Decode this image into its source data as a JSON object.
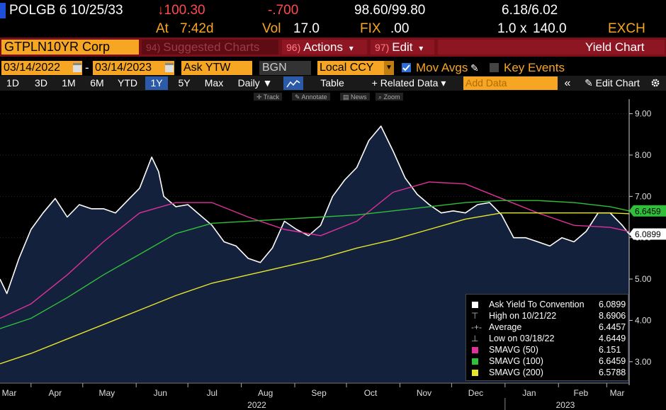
{
  "quote": {
    "security": "POLGB 6 10/25/33",
    "price": "↓100.30",
    "change": "-.700",
    "bid_ask": "98.60/99.80",
    "yield_pair": "6.18/6.02",
    "time_prefix": "At",
    "time": "7:42d",
    "vol_label": "Vol",
    "vol": "17.0",
    "fix_label": "FIX",
    "fix": ".00",
    "size": "1.0",
    "size_x": "x",
    "size2": "140.0",
    "exch": "EXCH"
  },
  "header": {
    "ticker": "GTPLN10YR Corp",
    "suggested": {
      "num": "94)",
      "label": "Suggested Charts"
    },
    "actions": {
      "num": "96)",
      "label": "Actions",
      "caret": "▾"
    },
    "edit": {
      "num": "97)",
      "label": "Edit",
      "caret": "▾"
    },
    "title": "Yield Chart"
  },
  "controls": {
    "start_date": "03/14/2022",
    "dash": "-",
    "end_date": "03/14/2023",
    "field": "Ask YTW",
    "source": "BGN",
    "currency": "Local CCY",
    "mov_avgs": "Mov Avgs",
    "key_events": "Key Events"
  },
  "periods": [
    "1D",
    "3D",
    "1M",
    "6M",
    "YTD",
    "1Y",
    "5Y",
    "Max"
  ],
  "selected_period": "1Y",
  "frequency": "Daily ▼",
  "table_btn": "Table",
  "related": "+ Related Data ▾",
  "add_data_placeholder": "Add Data",
  "collapse": "«",
  "edit_chart": "✎ Edit Chart",
  "settings_icon": "gear-icon",
  "tools": [
    "✛ Track",
    "✎ Annotate",
    "▤ News",
    "⌕ Zoom"
  ],
  "colors": {
    "price": "#ffffff",
    "fill": "#14213d",
    "sma50": "#e0309a",
    "sma100": "#2fbf3a",
    "sma200": "#e6e62a",
    "amber": "#f6a623",
    "header": "#7a0f1a"
  },
  "legend": [
    {
      "icon": "white-square",
      "label": "Ask Yield To Convention",
      "value": "6.0899"
    },
    {
      "icon": "high-marker",
      "label": "High on 10/21/22",
      "value": "8.6906"
    },
    {
      "icon": "average-marker",
      "label": "Average",
      "value": "6.4457"
    },
    {
      "icon": "low-marker",
      "label": "Low on 03/18/22",
      "value": "4.6449"
    },
    {
      "icon": "magenta-square",
      "label": "SMAVG (50)",
      "value": "6.151"
    },
    {
      "icon": "green-square",
      "label": "SMAVG (100)",
      "value": "6.6459"
    },
    {
      "icon": "yellow-square",
      "label": "SMAVG (200)",
      "value": "6.5788"
    }
  ],
  "chart_data": {
    "type": "area",
    "ylim": [
      2.5,
      9.25
    ],
    "yticks": [
      "9.00",
      "8.00",
      "7.00",
      "6.00",
      "5.00",
      "4.00",
      "3.00"
    ],
    "ytick_values": [
      9,
      8,
      7,
      6,
      5,
      4,
      3
    ],
    "x_months": [
      "Mar",
      "Apr",
      "May",
      "Jun",
      "Jul",
      "Aug",
      "Sep",
      "Oct",
      "Nov",
      "Dec",
      "Jan",
      "Feb",
      "Mar"
    ],
    "x_years": [
      "2022",
      "2023"
    ],
    "x_range": [
      "2022-03-14",
      "2023-03-14"
    ],
    "last_labels": [
      {
        "name": "SMAVG (100)",
        "value": "6.6459"
      },
      {
        "name": "Ask Yield To Convention",
        "value": "6.0899"
      }
    ],
    "series": [
      {
        "name": "Ask Yield To Convention",
        "x": [
          "2022-03-14",
          "2022-03-18",
          "2022-03-25",
          "2022-04-01",
          "2022-04-08",
          "2022-04-15",
          "2022-04-22",
          "2022-04-29",
          "2022-05-06",
          "2022-05-13",
          "2022-05-20",
          "2022-05-27",
          "2022-06-03",
          "2022-06-10",
          "2022-06-14",
          "2022-06-17",
          "2022-06-24",
          "2022-07-01",
          "2022-07-08",
          "2022-07-15",
          "2022-07-22",
          "2022-07-29",
          "2022-08-05",
          "2022-08-12",
          "2022-08-19",
          "2022-08-26",
          "2022-09-02",
          "2022-09-09",
          "2022-09-16",
          "2022-09-23",
          "2022-09-30",
          "2022-10-07",
          "2022-10-14",
          "2022-10-21",
          "2022-10-28",
          "2022-11-04",
          "2022-11-11",
          "2022-11-18",
          "2022-11-25",
          "2022-12-02",
          "2022-12-09",
          "2022-12-16",
          "2022-12-23",
          "2022-12-30",
          "2023-01-06",
          "2023-01-13",
          "2023-01-20",
          "2023-01-27",
          "2023-02-03",
          "2023-02-10",
          "2023-02-17",
          "2023-02-24",
          "2023-03-03",
          "2023-03-10",
          "2023-03-14"
        ],
        "values": [
          5.0,
          4.65,
          5.5,
          6.2,
          6.6,
          6.95,
          6.5,
          6.8,
          6.7,
          6.7,
          6.6,
          6.9,
          7.2,
          7.95,
          7.6,
          7.0,
          6.75,
          6.8,
          6.55,
          6.3,
          5.9,
          5.8,
          5.5,
          5.4,
          5.75,
          6.4,
          6.2,
          6.05,
          6.3,
          7.0,
          7.4,
          7.7,
          8.35,
          8.7,
          8.1,
          7.45,
          7.05,
          6.8,
          6.6,
          6.65,
          6.6,
          6.8,
          6.85,
          6.55,
          6.0,
          6.0,
          5.9,
          5.8,
          6.0,
          5.9,
          6.15,
          6.6,
          6.6,
          6.3,
          6.09
        ]
      },
      {
        "name": "SMAVG (50)",
        "x": [
          "2022-03-14",
          "2022-04-01",
          "2022-04-22",
          "2022-05-13",
          "2022-06-03",
          "2022-06-24",
          "2022-07-15",
          "2022-08-05",
          "2022-08-26",
          "2022-09-16",
          "2022-10-07",
          "2022-10-28",
          "2022-11-18",
          "2022-12-09",
          "2022-12-30",
          "2023-01-20",
          "2023-02-10",
          "2023-03-03",
          "2023-03-14"
        ],
        "values": [
          4.05,
          4.4,
          5.1,
          5.9,
          6.6,
          6.85,
          6.85,
          6.5,
          6.2,
          6.05,
          6.4,
          7.1,
          7.35,
          7.3,
          6.95,
          6.6,
          6.3,
          6.25,
          6.15
        ]
      },
      {
        "name": "SMAVG (100)",
        "x": [
          "2022-03-14",
          "2022-04-01",
          "2022-04-22",
          "2022-05-13",
          "2022-06-03",
          "2022-06-24",
          "2022-07-15",
          "2022-08-05",
          "2022-08-26",
          "2022-09-16",
          "2022-10-07",
          "2022-10-28",
          "2022-11-18",
          "2022-12-09",
          "2022-12-30",
          "2023-01-20",
          "2023-02-10",
          "2023-03-03",
          "2023-03-14"
        ],
        "values": [
          3.8,
          4.05,
          4.55,
          5.1,
          5.6,
          6.1,
          6.35,
          6.4,
          6.45,
          6.5,
          6.55,
          6.65,
          6.75,
          6.85,
          6.9,
          6.9,
          6.85,
          6.75,
          6.65
        ]
      },
      {
        "name": "SMAVG (200)",
        "x": [
          "2022-03-14",
          "2022-04-01",
          "2022-04-22",
          "2022-05-13",
          "2022-06-03",
          "2022-06-24",
          "2022-07-15",
          "2022-08-05",
          "2022-08-26",
          "2022-09-16",
          "2022-10-07",
          "2022-10-28",
          "2022-11-18",
          "2022-12-09",
          "2022-12-30",
          "2023-01-20",
          "2023-02-10",
          "2023-03-03",
          "2023-03-14"
        ],
        "values": [
          2.95,
          3.2,
          3.55,
          3.9,
          4.25,
          4.6,
          4.9,
          5.1,
          5.3,
          5.5,
          5.75,
          5.95,
          6.2,
          6.45,
          6.6,
          6.6,
          6.6,
          6.6,
          6.58
        ]
      }
    ]
  }
}
